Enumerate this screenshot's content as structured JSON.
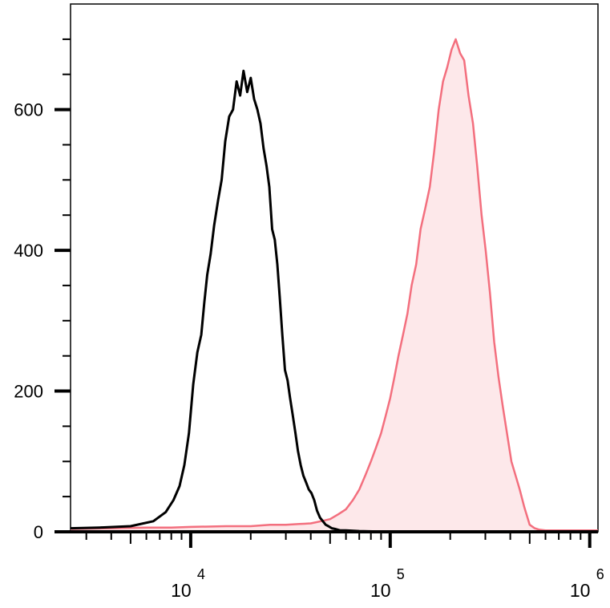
{
  "chart_data": {
    "type": "area",
    "x_scale": "log",
    "xlim": [
      2500,
      1100000
    ],
    "ylim": [
      0,
      750
    ],
    "grid": false,
    "legend": "none",
    "title": "",
    "xlabel": "",
    "ylabel": "",
    "y_ticks": [
      {
        "value": 0,
        "label": "0"
      },
      {
        "value": 200,
        "label": "200"
      },
      {
        "value": 400,
        "label": "400"
      },
      {
        "value": 600,
        "label": "600"
      }
    ],
    "x_ticks": [
      {
        "value": 10000,
        "base": "10",
        "exp": "4"
      },
      {
        "value": 100000,
        "base": "10",
        "exp": "5"
      },
      {
        "value": 1000000,
        "base": "10",
        "exp": "6"
      }
    ],
    "series": [
      {
        "color": "#000000",
        "fill": "none",
        "x": [
          2500,
          3500,
          5000,
          6500,
          7500,
          8200,
          8800,
          9300,
          9800,
          10300,
          10800,
          11300,
          11700,
          12100,
          12600,
          13100,
          13700,
          14300,
          14900,
          15600,
          16300,
          17000,
          17700,
          18400,
          19200,
          20000,
          20800,
          21600,
          22400,
          23200,
          24000,
          24800,
          25600,
          26400,
          27200,
          28000,
          28800,
          29700,
          30600,
          31500,
          32500,
          33500,
          34500,
          35600,
          36700,
          37900,
          39100,
          40300,
          41600,
          43000,
          44500,
          46000,
          47500,
          49000,
          51000,
          53000,
          56000,
          60000,
          70000,
          100000,
          300000,
          600000,
          1100000
        ],
        "y": [
          5,
          6,
          8,
          15,
          28,
          45,
          65,
          95,
          140,
          210,
          255,
          280,
          325,
          365,
          395,
          435,
          470,
          500,
          555,
          590,
          600,
          640,
          620,
          655,
          625,
          645,
          615,
          600,
          580,
          545,
          520,
          490,
          430,
          415,
          380,
          330,
          280,
          230,
          215,
          190,
          165,
          140,
          115,
          95,
          80,
          70,
          60,
          55,
          45,
          30,
          20,
          15,
          10,
          8,
          5,
          4,
          2,
          2,
          1,
          0,
          0,
          0,
          0
        ]
      },
      {
        "color": "#f36f7e",
        "fill": "#fde8ea",
        "x": [
          2500,
          4000,
          6000,
          8000,
          10000,
          15000,
          20000,
          25000,
          30000,
          35000,
          40000,
          45000,
          50000,
          55000,
          60000,
          65000,
          70000,
          75000,
          80000,
          85000,
          90000,
          95000,
          100000,
          105000,
          110000,
          116000,
          122000,
          128000,
          135000,
          142000,
          150000,
          158000,
          166000,
          175000,
          184000,
          193000,
          203000,
          213000,
          224000,
          235000,
          247000,
          260000,
          273000,
          287000,
          301000,
          316000,
          332000,
          349000,
          366000,
          385000,
          405000,
          425000,
          446000,
          470000,
          500000,
          530000,
          560000,
          600000,
          700000,
          1100000
        ],
        "y": [
          4,
          5,
          6,
          6,
          7,
          8,
          8,
          10,
          10,
          11,
          12,
          15,
          18,
          25,
          32,
          45,
          60,
          80,
          100,
          120,
          140,
          165,
          190,
          220,
          250,
          280,
          310,
          350,
          380,
          430,
          460,
          490,
          540,
          600,
          640,
          660,
          685,
          700,
          680,
          670,
          620,
          580,
          520,
          450,
          400,
          340,
          270,
          220,
          180,
          140,
          100,
          80,
          60,
          35,
          10,
          5,
          3,
          2,
          2,
          2
        ]
      }
    ]
  }
}
